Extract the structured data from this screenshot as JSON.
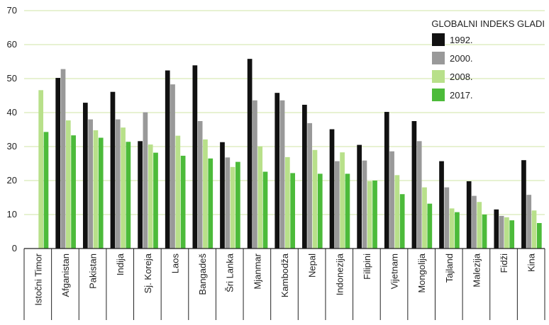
{
  "chart_data": {
    "type": "bar",
    "title": "",
    "xlabel": "",
    "ylabel": "",
    "ylim": [
      0,
      70
    ],
    "yticks": [
      0,
      10,
      20,
      30,
      40,
      50,
      60,
      70
    ],
    "grid": true,
    "legend": {
      "title": "GLOBALNI INDEKS GLADI",
      "placement": "top-right"
    },
    "categories": [
      "Istočni Timor",
      "Afganistan",
      "Pakistan",
      "Indija",
      "Sj. Koreja",
      "Laos",
      "Bangadeš",
      "Šri Lanka",
      "Mjanmar",
      "Kambodža",
      "Nepal",
      "Indonezija",
      "Filipini",
      "Vijetnam",
      "Mongolija",
      "Tajland",
      "Malezija",
      "Fidži",
      "Kina"
    ],
    "series": [
      {
        "name": "1992.",
        "color": "#111111",
        "values": [
          null,
          50.2,
          42.9,
          46.1,
          31.6,
          52.4,
          53.9,
          31.3,
          55.8,
          45.8,
          42.3,
          35.1,
          30.5,
          40.2,
          37.5,
          25.7,
          19.8,
          11.5,
          26.0
        ]
      },
      {
        "name": "2000.",
        "color": "#999999",
        "values": [
          null,
          52.8,
          38.0,
          38.0,
          40.1,
          48.3,
          37.5,
          26.8,
          43.6,
          43.6,
          36.9,
          25.7,
          25.9,
          28.6,
          31.6,
          18.0,
          15.5,
          9.6,
          15.8
        ]
      },
      {
        "name": "2008.",
        "color": "#b8e08a",
        "values": [
          46.6,
          37.7,
          34.8,
          35.6,
          30.6,
          33.2,
          32.1,
          24.0,
          30.1,
          26.9,
          29.0,
          28.3,
          19.8,
          21.6,
          18.0,
          11.8,
          13.7,
          9.2,
          11.2
        ]
      },
      {
        "name": "2017.",
        "color": "#4cbb3a",
        "values": [
          34.3,
          33.3,
          32.6,
          31.4,
          28.2,
          27.3,
          26.5,
          25.5,
          22.6,
          22.2,
          22.0,
          22.0,
          20.0,
          16.0,
          13.2,
          10.7,
          10.0,
          8.3,
          7.5
        ]
      }
    ]
  }
}
